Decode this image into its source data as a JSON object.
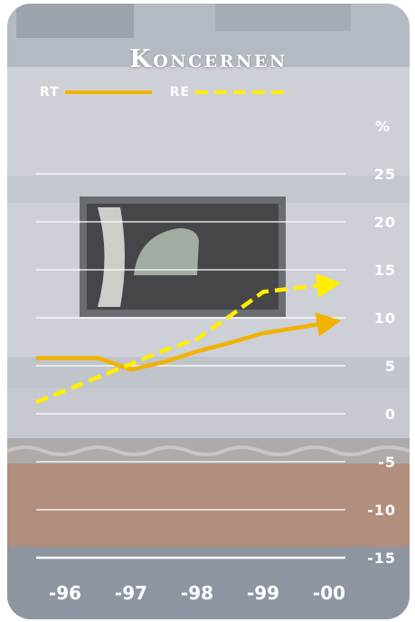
{
  "chart_data": {
    "type": "line",
    "title": "Koncernen",
    "unit_label": "%",
    "categories": [
      "-96",
      "-97",
      "-98",
      "-99",
      "-00"
    ],
    "yticks": [
      "25",
      "20",
      "15",
      "10",
      "5",
      "0",
      "-5",
      "-10",
      "-15"
    ],
    "ylim": [
      -15,
      25
    ],
    "grid": true,
    "legend_position": "top-left",
    "series": [
      {
        "name": "RT",
        "style": "solid",
        "color": "#f2b200",
        "x": [
          1996,
          1996.5,
          1997,
          1997.5,
          1998,
          1998.5,
          1999,
          2000
        ],
        "values": [
          5.8,
          5.8,
          4.6,
          5.4,
          6.5,
          7.4,
          8.4,
          9.5
        ]
      },
      {
        "name": "RE",
        "style": "dashed",
        "color": "#ffee00",
        "x": [
          1996,
          1996.5,
          1997,
          1997.5,
          1998,
          1998.5,
          1999,
          2000
        ],
        "values": [
          1.2,
          3.8,
          5.2,
          6.6,
          7.8,
          10.2,
          12.7,
          13.5
        ]
      }
    ]
  },
  "colors": {
    "grid": "#ffffff",
    "text": "#ffffff"
  }
}
